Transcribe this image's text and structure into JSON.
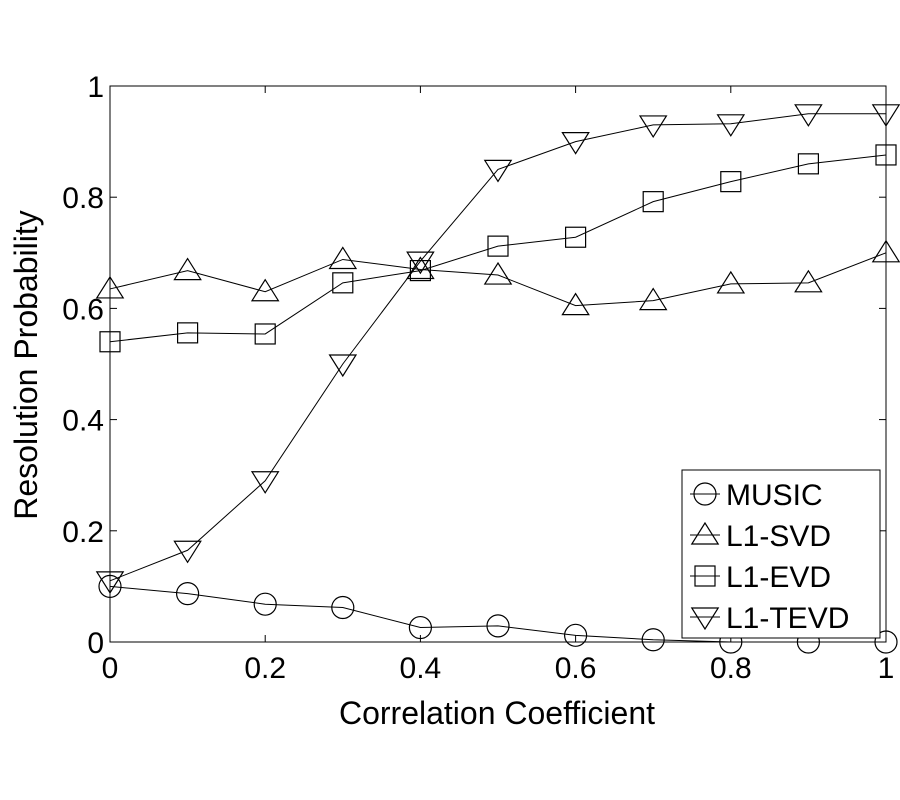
{
  "chart_data": {
    "type": "line",
    "xlabel": "Correlation Coefficient",
    "ylabel": "Resolution Probability",
    "xlim": [
      0,
      1
    ],
    "ylim": [
      0,
      1
    ],
    "x_ticks": [
      0,
      0.2,
      0.4,
      0.6,
      0.8,
      1
    ],
    "x_tick_labels": [
      "0",
      "0.2",
      "0.4",
      "0.6",
      "0.8",
      "1"
    ],
    "y_ticks": [
      0,
      0.2,
      0.4,
      0.6,
      0.8,
      1
    ],
    "y_tick_labels": [
      "0",
      "0.2",
      "0.4",
      "0.6",
      "0.8",
      "1"
    ],
    "grid": false,
    "legend_position": "bottom-right",
    "x": [
      0,
      0.1,
      0.2,
      0.3,
      0.4,
      0.5,
      0.6,
      0.7,
      0.8,
      0.9,
      1.0
    ],
    "series": [
      {
        "name": "MUSIC",
        "marker": "circle",
        "values": [
          0.1,
          0.087,
          0.068,
          0.062,
          0.026,
          0.029,
          0.012,
          0.004,
          0.0,
          0.0,
          0.0
        ]
      },
      {
        "name": "L1-SVD",
        "marker": "triangle-up",
        "values": [
          0.635,
          0.668,
          0.63,
          0.688,
          0.67,
          0.66,
          0.605,
          0.614,
          0.644,
          0.646,
          0.7
        ]
      },
      {
        "name": "L1-EVD",
        "marker": "square",
        "values": [
          0.54,
          0.556,
          0.554,
          0.646,
          0.668,
          0.712,
          0.728,
          0.792,
          0.828,
          0.86,
          0.876
        ]
      },
      {
        "name": "L1-TEVD",
        "marker": "triangle-down",
        "values": [
          0.11,
          0.165,
          0.29,
          0.5,
          0.685,
          0.85,
          0.9,
          0.93,
          0.932,
          0.95,
          0.95
        ]
      }
    ]
  }
}
